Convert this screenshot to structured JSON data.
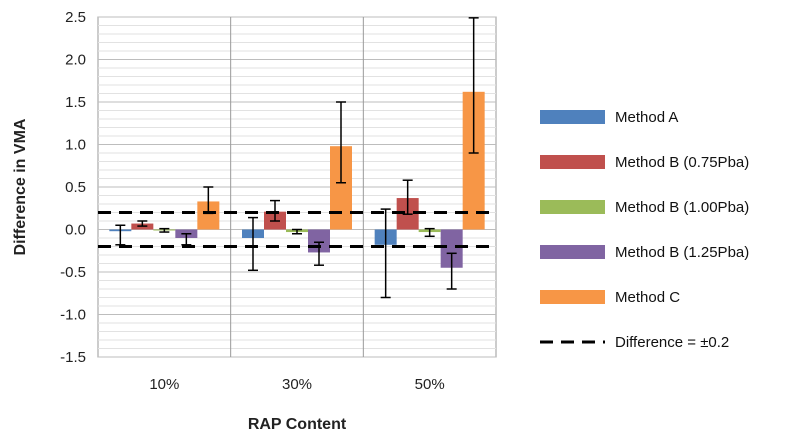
{
  "chart_data": {
    "type": "bar",
    "xlabel": "RAP Content",
    "ylabel": "Difference in VMA",
    "ylim": [
      -1.5,
      2.5
    ],
    "yticks": [
      "-1.5",
      "-1.0",
      "-0.5",
      "0.0",
      "0.5",
      "1.0",
      "1.5",
      "2.0",
      "2.5"
    ],
    "categories": [
      "10%",
      "30%",
      "50%"
    ],
    "grid": "horizontal minor gridlines every 0.1, vertical separators between categories",
    "legend_position": "right",
    "series": [
      {
        "name": "Method A",
        "color": "#4f81bd",
        "values": [
          -0.02,
          -0.1,
          -0.18
        ],
        "err_low": [
          -0.18,
          -0.48,
          -0.8
        ],
        "err_high": [
          0.05,
          0.14,
          0.24
        ]
      },
      {
        "name": "Method B (0.75Pba)",
        "color": "#c0504d",
        "values": [
          0.07,
          0.21,
          0.37
        ],
        "err_low": [
          0.04,
          0.1,
          0.18
        ],
        "err_high": [
          0.1,
          0.34,
          0.58
        ]
      },
      {
        "name": "Method B (1.00Pba)",
        "color": "#9bbb59",
        "values": [
          -0.01,
          -0.03,
          -0.03
        ],
        "err_low": [
          -0.03,
          -0.05,
          -0.08
        ],
        "err_high": [
          0.01,
          0.0,
          0.01
        ]
      },
      {
        "name": "Method B (1.25Pba)",
        "color": "#8064a2",
        "values": [
          -0.1,
          -0.27,
          -0.45
        ],
        "err_low": [
          -0.18,
          -0.42,
          -0.7
        ],
        "err_high": [
          -0.05,
          -0.15,
          -0.28
        ]
      },
      {
        "name": "Method C",
        "color": "#f79646",
        "values": [
          0.33,
          0.98,
          1.62
        ],
        "err_low": [
          0.19,
          0.55,
          0.9
        ],
        "err_high": [
          0.5,
          1.5,
          2.49
        ]
      }
    ],
    "reference_lines": [
      {
        "name": "Difference = ±0.2",
        "values": [
          0.2,
          -0.2
        ],
        "style": "dashed",
        "color": "#000000"
      }
    ]
  }
}
